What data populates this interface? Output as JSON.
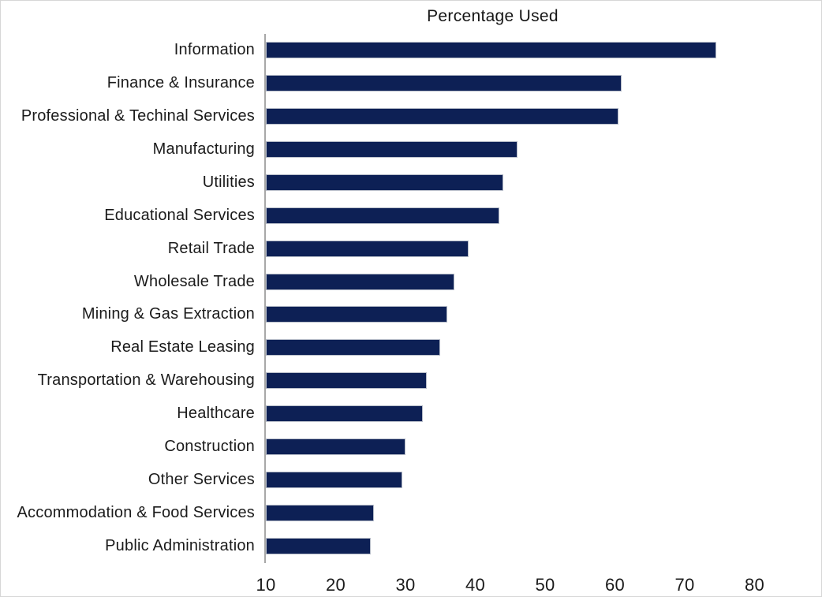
{
  "chart_data": {
    "type": "bar",
    "orientation": "horizontal",
    "title": "Percentage Used",
    "categories": [
      "Information",
      "Finance & Insurance",
      "Professional & Techinal Services",
      "Manufacturing",
      "Utilities",
      "Educational Services",
      "Retail Trade",
      "Wholesale Trade",
      "Mining & Gas Extraction",
      "Real Estate Leasing",
      "Transportation & Warehousing",
      "Healthcare",
      "Construction",
      "Other Services",
      "Accommodation & Food Services",
      "Public Administration"
    ],
    "values": [
      74.5,
      61,
      60.5,
      46,
      44,
      43.5,
      39,
      37,
      36,
      35,
      33,
      32.5,
      30,
      29.5,
      25.5,
      25
    ],
    "x_ticks": [
      10,
      20,
      30,
      40,
      50,
      60,
      70,
      80
    ],
    "xlim": [
      10,
      85
    ],
    "xlabel": "",
    "ylabel": "",
    "grid": false,
    "legend": "none",
    "colors": {
      "bar_fill": "#0d2055",
      "bar_border": "#b6bcc8",
      "axis_line": "#a8a8a8",
      "text": "#1b1b1b",
      "background": "#ffffff"
    }
  }
}
